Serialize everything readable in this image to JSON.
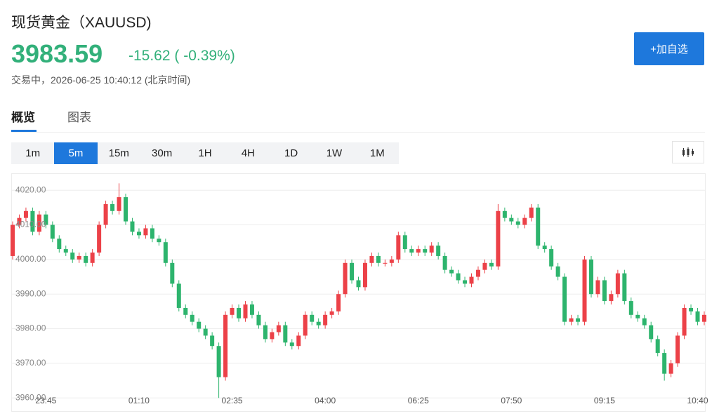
{
  "header": {
    "title": "现货黄金（XAUUSD)",
    "price": "3983.59",
    "change": "-15.62 ( -0.39%)",
    "status": "交易中，2026-06-25 10:40:12 (北京时间)",
    "button": "+加自选"
  },
  "tabs": [
    "概览",
    "图表"
  ],
  "intervals": [
    "1m",
    "5m",
    "15m",
    "30m",
    "1H",
    "4H",
    "1D",
    "1W",
    "1M"
  ],
  "active_interval": "5m",
  "chart_data": {
    "type": "candlestick",
    "up_color": "#ec4148",
    "down_color": "#2db46d",
    "grid": true,
    "categories": [
      null,
      null,
      null,
      null,
      null,
      "23:45",
      null,
      null,
      null,
      null,
      null,
      null,
      null,
      null,
      null,
      null,
      null,
      null,
      null,
      "01:10",
      null,
      null,
      null,
      null,
      null,
      null,
      null,
      null,
      null,
      null,
      null,
      null,
      null,
      "02:35",
      null,
      null,
      null,
      null,
      null,
      null,
      null,
      null,
      null,
      null,
      null,
      null,
      null,
      "04:00",
      null,
      null,
      null,
      null,
      null,
      null,
      null,
      null,
      null,
      null,
      null,
      null,
      null,
      "06:25",
      null,
      null,
      null,
      null,
      null,
      null,
      null,
      null,
      null,
      null,
      null,
      null,
      null,
      "07:50",
      null,
      null,
      null,
      null,
      null,
      null,
      null,
      null,
      null,
      null,
      null,
      null,
      null,
      "09:15",
      null,
      null,
      null,
      null,
      null,
      null,
      null,
      null,
      null,
      null,
      null,
      null,
      null,
      "10:40",
      null
    ],
    "open": [
      4001,
      4010,
      4012,
      4014,
      4008,
      4013,
      4010,
      4006,
      4003,
      4002,
      4000,
      4001,
      3999,
      4002,
      4010,
      4016,
      4014,
      4018,
      4011,
      4008,
      4007,
      4009,
      4006,
      4005,
      3999,
      3993,
      3986,
      3984,
      3982,
      3980,
      3978,
      3975,
      3966,
      3984,
      3986,
      3983,
      3987,
      3984,
      3981,
      3977,
      3979,
      3981,
      3976,
      3975,
      3978,
      3984,
      3982,
      3981,
      3984,
      3985,
      3990,
      3999,
      3994,
      3992,
      3999,
      4001,
      3999,
      3999,
      4000,
      4007,
      4003,
      4002,
      4003,
      4002,
      4004,
      4001,
      3997,
      3996,
      3994,
      3993,
      3995,
      3997,
      3999,
      3998,
      4014,
      4012,
      4011,
      4010,
      4012,
      4015,
      4004,
      4003,
      3998,
      3995,
      3982,
      3983,
      3982,
      4000,
      3990,
      3994,
      3988,
      3990,
      3996,
      3988,
      3984,
      3983,
      3981,
      3977,
      3973,
      3967,
      3970,
      3978,
      3986,
      3985,
      3982
    ],
    "high": [
      4011,
      4013,
      4015,
      4015,
      4014,
      4014,
      4011,
      4007,
      4004,
      4003,
      4002,
      4002,
      4003,
      4011,
      4017,
      4017,
      4022,
      4019,
      4012,
      4009,
      4010,
      4010,
      4007,
      4006,
      4000,
      3994,
      3987,
      3985,
      3983,
      3981,
      3979,
      3976,
      3985,
      3987,
      3987,
      3988,
      3988,
      3985,
      3982,
      3980,
      3982,
      3982,
      3977,
      3979,
      3985,
      3985,
      3983,
      3985,
      3986,
      3991,
      4000,
      4000,
      3995,
      4000,
      4002,
      4002,
      4000,
      4001,
      4008,
      4008,
      4004,
      4004,
      4004,
      4005,
      4005,
      4002,
      3998,
      3997,
      3995,
      3996,
      3998,
      4000,
      4000,
      4016,
      4015,
      4013,
      4012,
      4013,
      4016,
      4016,
      4005,
      4004,
      3999,
      3996,
      3984,
      3984,
      4001,
      4001,
      3995,
      3995,
      3991,
      3997,
      3997,
      3989,
      3985,
      3984,
      3982,
      3978,
      3974,
      3971,
      3979,
      3987,
      3987,
      3986,
      3985
    ],
    "low": [
      4000,
      4009,
      4011,
      4007,
      4007,
      4009,
      4005,
      4002,
      4001,
      3999,
      3999,
      3998,
      3998,
      4001,
      4009,
      4013,
      4013,
      4010,
      4007,
      4006,
      4006,
      4005,
      4004,
      3998,
      3992,
      3985,
      3983,
      3981,
      3979,
      3977,
      3974,
      3960,
      3965,
      3983,
      3982,
      3982,
      3983,
      3980,
      3976,
      3976,
      3978,
      3975,
      3974,
      3974,
      3977,
      3981,
      3980,
      3980,
      3983,
      3984,
      3989,
      3993,
      3991,
      3991,
      3998,
      3998,
      3998,
      3998,
      3999,
      4002,
      4001,
      4001,
      4001,
      4001,
      4000,
      3996,
      3995,
      3993,
      3992,
      3992,
      3994,
      3996,
      3997,
      3997,
      4011,
      4010,
      4009,
      4009,
      4011,
      4003,
      4002,
      3997,
      3994,
      3981,
      3981,
      3981,
      3981,
      3989,
      3989,
      3987,
      3987,
      3989,
      3987,
      3983,
      3982,
      3980,
      3976,
      3972,
      3965,
      3966,
      3969,
      3977,
      3984,
      3981,
      3981
    ],
    "close": [
      4010,
      4012,
      4014,
      4008,
      4013,
      4010,
      4006,
      4003,
      4002,
      4000,
      4001,
      3999,
      4002,
      4010,
      4016,
      4014,
      4018,
      4011,
      4008,
      4007,
      4009,
      4006,
      4005,
      3999,
      3993,
      3986,
      3984,
      3982,
      3980,
      3978,
      3975,
      3966,
      3984,
      3986,
      3983,
      3987,
      3984,
      3981,
      3977,
      3979,
      3981,
      3976,
      3975,
      3978,
      3984,
      3982,
      3981,
      3984,
      3985,
      3990,
      3999,
      3994,
      3992,
      3999,
      4001,
      3999,
      3999,
      4000,
      4007,
      4003,
      4002,
      4003,
      4002,
      4004,
      4001,
      3997,
      3996,
      3994,
      3993,
      3995,
      3997,
      3999,
      3998,
      4014,
      4012,
      4011,
      4010,
      4012,
      4015,
      4004,
      4003,
      3998,
      3995,
      3982,
      3983,
      3982,
      4000,
      3990,
      3994,
      3988,
      3990,
      3996,
      3988,
      3984,
      3983,
      3981,
      3977,
      3973,
      3967,
      3970,
      3978,
      3986,
      3985,
      3982,
      3984
    ],
    "ylim": [
      3956.4,
      4024.7
    ],
    "yticks": [
      {
        "value": 3960,
        "label": "3960.00"
      },
      {
        "value": 3970,
        "label": "3970.00"
      },
      {
        "value": 3980,
        "label": "3980.00"
      },
      {
        "value": 3990,
        "label": "3990.00"
      },
      {
        "value": 4000,
        "label": "4000.00"
      },
      {
        "value": 4010,
        "label": "4010.00"
      },
      {
        "value": 4020,
        "label": "4020.00"
      }
    ]
  }
}
